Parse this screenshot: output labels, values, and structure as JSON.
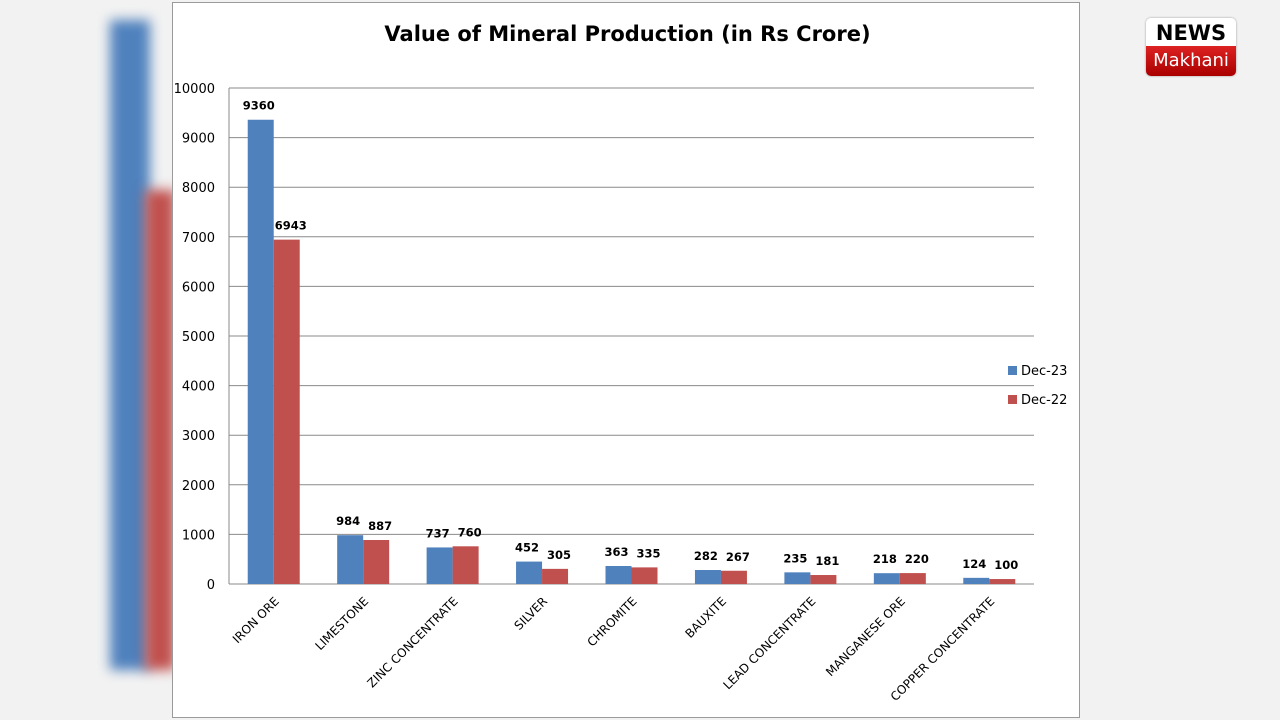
{
  "chart_data": {
    "type": "bar",
    "title": "Value of Mineral Production (in Rs Crore)",
    "categories": [
      "IRON ORE",
      "LIMESTONE",
      "ZINC CONCENTRATE",
      "SILVER",
      "CHROMITE",
      "BAUXITE",
      "LEAD CONCENTRATE",
      "MANGANESE ORE",
      "COPPER CONCENTRATE"
    ],
    "series": [
      {
        "name": "Dec-23",
        "color": "#4f81bd",
        "values": [
          9360,
          984,
          737,
          452,
          363,
          282,
          235,
          218,
          124
        ]
      },
      {
        "name": "Dec-22",
        "color": "#c0504d",
        "values": [
          6943,
          887,
          760,
          305,
          335,
          267,
          181,
          220,
          100
        ]
      }
    ],
    "ylim": [
      0,
      10000
    ],
    "yticks": [
      0,
      1000,
      2000,
      3000,
      4000,
      5000,
      6000,
      7000,
      8000,
      9000,
      10000
    ],
    "grid": true,
    "legend": "right"
  },
  "logo": {
    "top": "NEWS",
    "bottom": "Makhani"
  }
}
